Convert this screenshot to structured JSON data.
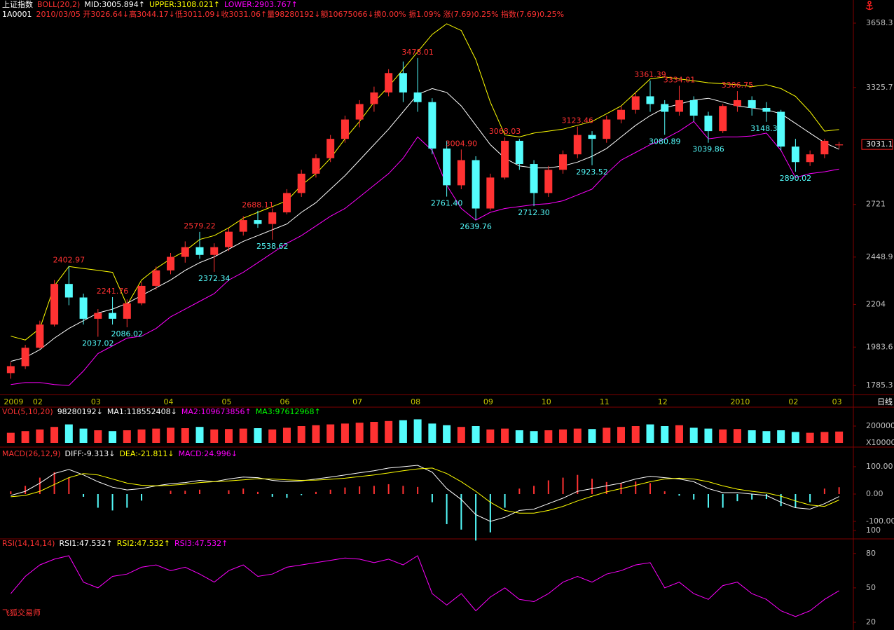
{
  "header": [
    [
      {
        "text": "上证指数",
        "color": "#ffffff"
      },
      {
        "text": "BOLL(20,2)",
        "color": "#ff3232"
      },
      {
        "text": "MID:3005.894↑",
        "color": "#ffffff"
      },
      {
        "text": "UPPER:3108.021↑",
        "color": "#ffff00"
      },
      {
        "text": "LOWER:2903.767↑",
        "color": "#ff00ff"
      }
    ],
    [
      {
        "text": "1A0001",
        "color": "#ffffff"
      },
      {
        "text": "2010/03/05 开3026.64↓高3044.17↓低3011.09↓收3031.06↑量98280192↓额10675066↓换0.00% 振1.09% 涨(7.69)0.25% 指数(7.69)0.25%",
        "color": "#ff3232"
      }
    ]
  ],
  "period": "日线",
  "watermark": "飞狐交易师",
  "chart_data": [
    {
      "type": "candlestick",
      "categories": [
        "2009",
        null,
        "02",
        null,
        null,
        null,
        "03",
        null,
        null,
        null,
        null,
        "04",
        null,
        null,
        null,
        "05",
        null,
        null,
        null,
        "06",
        null,
        null,
        null,
        null,
        "07",
        null,
        null,
        null,
        "08",
        null,
        null,
        null,
        null,
        "09",
        null,
        null,
        null,
        "10",
        null,
        null,
        null,
        "11",
        null,
        null,
        null,
        "12",
        null,
        null,
        null,
        null,
        "2010",
        null,
        null,
        null,
        "02",
        null,
        null,
        "03"
      ],
      "open": [
        1849,
        1885,
        1980,
        2100,
        2310,
        2240,
        2130,
        2160,
        2130,
        2210,
        2300,
        2380,
        2450,
        2500,
        2460,
        2500,
        2580,
        2640,
        2620,
        2680,
        2780,
        2880,
        2960,
        3060,
        3160,
        3240,
        3300,
        3400,
        3300,
        3250,
        3010,
        2820,
        2950,
        2700,
        2860,
        3050,
        2930,
        2780,
        2900,
        2980,
        3080,
        3060,
        3160,
        3210,
        3280,
        3240,
        3200,
        3260,
        3180,
        3100,
        3230,
        3260,
        3220,
        3200,
        3020,
        2940,
        2980,
        3026.64
      ],
      "high": [
        1905,
        1995,
        2120,
        2330,
        2402.97,
        2260,
        2180,
        2241.76,
        2230,
        2320,
        2400,
        2470,
        2530,
        2579.22,
        2520,
        2600,
        2660,
        2688.11,
        2700,
        2800,
        2900,
        2980,
        3080,
        3180,
        3260,
        3330,
        3420,
        3460,
        3478.01,
        3270,
        3050,
        3004.9,
        2970,
        2880,
        3068.03,
        3060,
        2950,
        2920,
        3000,
        3123.46,
        3100,
        3180,
        3230,
        3300,
        3361.39,
        3260,
        3334.01,
        3280,
        3200,
        3240,
        3306.75,
        3280,
        3250,
        3210,
        3060,
        3000,
        3060,
        3044.17
      ],
      "low": [
        1820,
        1870,
        1975,
        2090,
        2200,
        2100,
        2037.02,
        2100,
        2086.02,
        2200,
        2280,
        2360,
        2420,
        2440,
        2372.34,
        2480,
        2560,
        2600,
        2538.62,
        2670,
        2760,
        2860,
        2940,
        3040,
        3120,
        3200,
        3280,
        3250,
        3200,
        2980,
        2761.4,
        2800,
        2639.76,
        2690,
        2850,
        2900,
        2712.3,
        2760,
        2880,
        2960,
        2923.52,
        3040,
        3140,
        3190,
        3200,
        3080.89,
        3180,
        3150,
        3039.86,
        3090,
        3200,
        3180,
        3148.33,
        3000,
        2890.02,
        2920,
        2960,
        3011.09
      ],
      "close": [
        1885,
        1980,
        2100,
        2310,
        2240,
        2130,
        2160,
        2130,
        2210,
        2300,
        2380,
        2450,
        2500,
        2460,
        2500,
        2580,
        2640,
        2620,
        2680,
        2780,
        2880,
        2960,
        3060,
        3160,
        3240,
        3300,
        3400,
        3300,
        3250,
        3010,
        2820,
        2950,
        2700,
        2860,
        3050,
        2930,
        2780,
        2900,
        2980,
        3080,
        3060,
        3160,
        3210,
        3280,
        3240,
        3200,
        3260,
        3180,
        3100,
        3230,
        3260,
        3220,
        3200,
        3020,
        2940,
        2980,
        3050,
        3031.06
      ],
      "high_labels": [
        null,
        null,
        null,
        null,
        "2402.97",
        null,
        null,
        "2241.76",
        null,
        null,
        null,
        null,
        null,
        "2579.22",
        null,
        null,
        null,
        "2688.11",
        null,
        null,
        null,
        null,
        null,
        null,
        null,
        null,
        null,
        null,
        "3478.01",
        null,
        null,
        "3004.90",
        null,
        null,
        "3068.03",
        null,
        null,
        null,
        null,
        "3123.46",
        null,
        null,
        null,
        null,
        "3361.39",
        null,
        "3334.01",
        null,
        null,
        null,
        "3306.75",
        null,
        null,
        null,
        null,
        null,
        null,
        null
      ],
      "low_labels": [
        null,
        null,
        null,
        null,
        null,
        null,
        "2037.02",
        null,
        "2086.02",
        null,
        null,
        null,
        null,
        null,
        "2372.34",
        null,
        null,
        null,
        "2538.62",
        null,
        null,
        null,
        null,
        null,
        null,
        null,
        null,
        null,
        null,
        null,
        "2761.40",
        null,
        "2639.76",
        null,
        null,
        null,
        "2712.30",
        null,
        null,
        null,
        "2923.52",
        null,
        null,
        null,
        null,
        "3080.89",
        null,
        null,
        "3039.86",
        null,
        null,
        null,
        "3148.33",
        null,
        "2890.02",
        null,
        null,
        null
      ],
      "series": [
        {
          "color": "#ffff00",
          "values": [
            2040,
            2020,
            2080,
            2300,
            2400,
            2390,
            2380,
            2370,
            2200,
            2330,
            2390,
            2440,
            2480,
            2540,
            2560,
            2600,
            2650,
            2680,
            2710,
            2740,
            2820,
            2880,
            2960,
            3060,
            3150,
            3250,
            3330,
            3420,
            3510,
            3600,
            3655,
            3620,
            3470,
            3250,
            3080,
            3070,
            3090,
            3100,
            3110,
            3130,
            3150,
            3190,
            3230,
            3300,
            3370,
            3380,
            3370,
            3360,
            3350,
            3345,
            3340,
            3330,
            3340,
            3320,
            3280,
            3200,
            3100,
            3108.021
          ]
        },
        {
          "color": "#ffffff",
          "values": [
            1910,
            1930,
            1970,
            2030,
            2080,
            2120,
            2160,
            2180,
            2210,
            2250,
            2290,
            2330,
            2380,
            2420,
            2450,
            2490,
            2530,
            2560,
            2590,
            2620,
            2680,
            2730,
            2800,
            2870,
            2950,
            3030,
            3110,
            3200,
            3290,
            3320,
            3300,
            3230,
            3130,
            3030,
            2960,
            2920,
            2910,
            2910,
            2920,
            2940,
            2970,
            3010,
            3070,
            3130,
            3180,
            3220,
            3240,
            3260,
            3270,
            3250,
            3230,
            3220,
            3210,
            3190,
            3140,
            3090,
            3040,
            3005.894
          ]
        },
        {
          "color": "#ff00ff",
          "values": [
            1790,
            1800,
            1800,
            1790,
            1785,
            1860,
            1950,
            1990,
            2030,
            2040,
            2080,
            2140,
            2180,
            2220,
            2260,
            2330,
            2370,
            2420,
            2470,
            2520,
            2560,
            2610,
            2660,
            2700,
            2760,
            2820,
            2880,
            2960,
            3070,
            3000,
            2820,
            2700,
            2640,
            2680,
            2700,
            2710,
            2720,
            2725,
            2740,
            2770,
            2800,
            2880,
            2950,
            2990,
            3030,
            3060,
            3100,
            3150,
            3060,
            3070,
            3070,
            3075,
            3090,
            3000,
            2860,
            2880,
            2890,
            2903.767
          ]
        }
      ],
      "up_color": "#ff3232",
      "down_color": "#54fcfc",
      "ylim": [
        1785.3,
        3658.3
      ],
      "yticks": [
        3658.3,
        3325.7,
        2721.0,
        2448.9,
        2204.0,
        1983.6,
        1785.3
      ],
      "last_price": 3031.1
    },
    {
      "type": "bar",
      "legend": [
        {
          "text": "VOL(5,10,20)",
          "color": "#ff3232"
        },
        {
          "text": "98280192↓",
          "color": "#ffffff"
        },
        {
          "text": "MA1:118552408↓",
          "color": "#ffffff"
        },
        {
          "text": "MA2:109673856↑",
          "color": "#ff00ff"
        },
        {
          "text": "MA3:97612968↑",
          "color": "#00ff00"
        }
      ],
      "values": [
        120000,
        140000,
        160000,
        190000,
        220000,
        170000,
        150000,
        140000,
        150000,
        160000,
        170000,
        180000,
        175000,
        190000,
        160000,
        165000,
        170000,
        175000,
        160000,
        180000,
        200000,
        210000,
        220000,
        230000,
        240000,
        250000,
        260000,
        270000,
        280000,
        230000,
        210000,
        190000,
        200000,
        160000,
        170000,
        150000,
        140000,
        150000,
        160000,
        170000,
        165000,
        180000,
        190000,
        200000,
        220000,
        200000,
        210000,
        180000,
        170000,
        160000,
        165000,
        150000,
        140000,
        150000,
        130000,
        120000,
        130000,
        135000
      ],
      "ylim": [
        0,
        280000
      ],
      "yticks": [
        200000
      ],
      "unit": "X10000"
    },
    {
      "type": "macd",
      "legend": [
        {
          "text": "MACD(26,12,9)",
          "color": "#ff3232"
        },
        {
          "text": "DIFF:-9.313↓",
          "color": "#ffffff"
        },
        {
          "text": "DEA:-21.811↓",
          "color": "#ffff00"
        },
        {
          "text": "MACD:24.996↓",
          "color": "#ff00ff"
        }
      ],
      "values": [
        10,
        30,
        60,
        80,
        60,
        -10,
        -50,
        -60,
        -50,
        -24,
        0,
        12,
        12,
        16,
        0,
        14,
        20,
        8,
        -10,
        -14,
        -4,
        8,
        16,
        24,
        28,
        30,
        36,
        30,
        26,
        -30,
        -110,
        -130,
        -170,
        -140,
        -50,
        20,
        30,
        50,
        60,
        70,
        56,
        44,
        40,
        46,
        40,
        10,
        -6,
        -20,
        -50,
        -50,
        -26,
        -20,
        -18,
        -44,
        -50,
        -30,
        20,
        24.996
      ],
      "series": [
        {
          "color": "#ffffff",
          "values": [
            -5,
            10,
            40,
            75,
            90,
            70,
            45,
            25,
            15,
            20,
            30,
            38,
            42,
            50,
            45,
            55,
            62,
            60,
            50,
            45,
            48,
            55,
            62,
            70,
            78,
            85,
            95,
            100,
            105,
            80,
            20,
            -20,
            -75,
            -100,
            -85,
            -60,
            -55,
            -35,
            -15,
            10,
            20,
            30,
            40,
            55,
            65,
            60,
            55,
            45,
            20,
            5,
            5,
            0,
            -5,
            -30,
            -50,
            -55,
            -35,
            -9.313
          ]
        },
        {
          "color": "#ffff00",
          "values": [
            -10,
            -5,
            10,
            35,
            60,
            75,
            70,
            55,
            40,
            32,
            30,
            32,
            36,
            42,
            45,
            48,
            52,
            56,
            55,
            52,
            50,
            51,
            54,
            58,
            64,
            70,
            77,
            85,
            92,
            95,
            75,
            45,
            10,
            -30,
            -60,
            -70,
            -70,
            -60,
            -45,
            -25,
            -8,
            8,
            20,
            32,
            45,
            55,
            58,
            55,
            45,
            30,
            18,
            10,
            4,
            -8,
            -25,
            -40,
            -45,
            -21.811
          ]
        }
      ],
      "up_color": "#ff3232",
      "down_color": "#54fcfc",
      "ylim": [
        -155,
        155
      ],
      "yticks": [
        {
          "value": 100,
          "label": "100.00"
        },
        {
          "value": 0,
          "label": "0.00"
        },
        {
          "value": -100,
          "label": "-100.00"
        }
      ]
    },
    {
      "type": "line",
      "legend": [
        {
          "text": "RSI(14,14,14)",
          "color": "#ff3232"
        },
        {
          "text": "RSI1:47.532↑",
          "color": "#ffffff"
        },
        {
          "text": "RSI2:47.532↑",
          "color": "#ffff00"
        },
        {
          "text": "RSI3:47.532↑",
          "color": "#ff00ff"
        }
      ],
      "series": [
        {
          "color": "#ff00ff",
          "values": [
            45,
            60,
            70,
            75,
            78,
            55,
            50,
            60,
            62,
            68,
            70,
            65,
            68,
            62,
            55,
            65,
            70,
            60,
            62,
            68,
            70,
            72,
            74,
            76,
            75,
            72,
            75,
            70,
            78,
            45,
            35,
            45,
            30,
            42,
            50,
            40,
            38,
            45,
            55,
            60,
            55,
            62,
            65,
            70,
            72,
            50,
            55,
            45,
            40,
            52,
            55,
            45,
            40,
            30,
            25,
            30,
            40,
            47.532
          ]
        }
      ],
      "ylim": [
        20,
        100
      ],
      "yticks": [
        100,
        80,
        50,
        20
      ]
    }
  ]
}
